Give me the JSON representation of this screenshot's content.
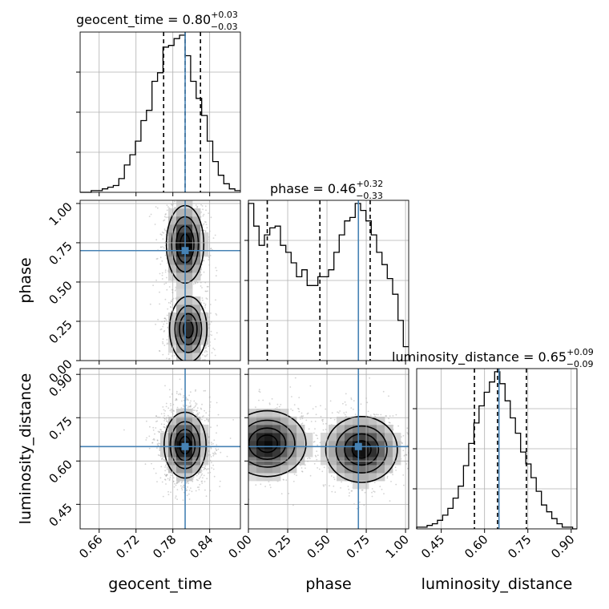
{
  "chart_data": {
    "type": "corner",
    "parameters": [
      "geocent_time",
      "phase",
      "luminosity_distance"
    ],
    "titles": {
      "geocent_time": {
        "label": "geocent_time",
        "value": "0.80",
        "plus": "+0.03",
        "minus": "−0.03"
      },
      "phase": {
        "label": "phase",
        "value": "0.46",
        "plus": "+0.32",
        "minus": "−0.33"
      },
      "luminosity_distance": {
        "label": "luminosity_distance",
        "value": "0.65",
        "plus": "+0.09",
        "minus": "−0.09"
      }
    },
    "axis_labels": {
      "geocent_time": "geocent_time",
      "phase": "phase",
      "luminosity_distance": "luminosity_distance"
    },
    "ranges": {
      "geocent_time": [
        0.629,
        0.89
      ],
      "phase": [
        0.0,
        1.02
      ],
      "luminosity_distance": [
        0.365,
        0.92
      ]
    },
    "ticks": {
      "geocent_time": [
        "0.66",
        "0.72",
        "0.78",
        "0.84"
      ],
      "phase": [
        "0.00",
        "0.25",
        "0.50",
        "0.75",
        "1.00"
      ],
      "luminosity_distance": [
        "0.45",
        "0.60",
        "0.75",
        "0.90"
      ]
    },
    "truths": {
      "geocent_time": 0.8,
      "phase": 0.7,
      "luminosity_distance": 0.65
    },
    "quantiles": {
      "geocent_time": [
        0.765,
        0.8,
        0.825
      ],
      "phase": [
        0.12,
        0.455,
        0.775
      ],
      "luminosity_distance": [
        0.565,
        0.645,
        0.745
      ]
    },
    "histograms": {
      "geocent_time": {
        "bin_edges": [
          0.629,
          0.638,
          0.647,
          0.656,
          0.665,
          0.674,
          0.683,
          0.692,
          0.701,
          0.71,
          0.719,
          0.728,
          0.737,
          0.746,
          0.755,
          0.764,
          0.773,
          0.782,
          0.791,
          0.8,
          0.809,
          0.818,
          0.827,
          0.836,
          0.845,
          0.854,
          0.863,
          0.872,
          0.881,
          0.89
        ],
        "counts": [
          0,
          0,
          1,
          1,
          2,
          3,
          4,
          8,
          16,
          22,
          30,
          42,
          48,
          65,
          70,
          85,
          86,
          90,
          92,
          80,
          65,
          55,
          45,
          30,
          18,
          10,
          5,
          2,
          1
        ]
      },
      "phase": {
        "bin_edges": [
          0.0,
          0.034,
          0.068,
          0.102,
          0.136,
          0.17,
          0.204,
          0.238,
          0.272,
          0.306,
          0.34,
          0.374,
          0.408,
          0.442,
          0.476,
          0.51,
          0.544,
          0.578,
          0.612,
          0.646,
          0.68,
          0.714,
          0.748,
          0.782,
          0.816,
          0.85,
          0.884,
          0.918,
          0.952,
          0.986,
          1.02
        ],
        "counts": [
          90,
          77,
          66,
          72,
          76,
          77,
          66,
          62,
          56,
          48,
          52,
          43,
          43,
          48,
          48,
          52,
          62,
          72,
          80,
          82,
          90,
          86,
          80,
          72,
          62,
          55,
          47,
          38,
          23,
          8
        ]
      },
      "luminosity_distance": {
        "bin_edges": [
          0.365,
          0.383,
          0.401,
          0.419,
          0.437,
          0.455,
          0.473,
          0.491,
          0.509,
          0.527,
          0.545,
          0.563,
          0.581,
          0.599,
          0.617,
          0.635,
          0.653,
          0.671,
          0.689,
          0.707,
          0.725,
          0.743,
          0.761,
          0.779,
          0.797,
          0.815,
          0.833,
          0.851,
          0.869,
          0.887,
          0.905,
          0.92
        ],
        "counts": [
          1,
          1,
          2,
          3,
          5,
          8,
          12,
          18,
          25,
          37,
          50,
          62,
          72,
          80,
          86,
          92,
          85,
          75,
          65,
          56,
          45,
          38,
          30,
          22,
          14,
          10,
          6,
          3,
          1,
          1,
          0
        ]
      }
    },
    "grid": true,
    "colors": {
      "truth": "#4682b4",
      "hist": "#000000",
      "quantile": "#000000",
      "points": "#9e9e9e",
      "grid": "#b0b0b0"
    }
  }
}
